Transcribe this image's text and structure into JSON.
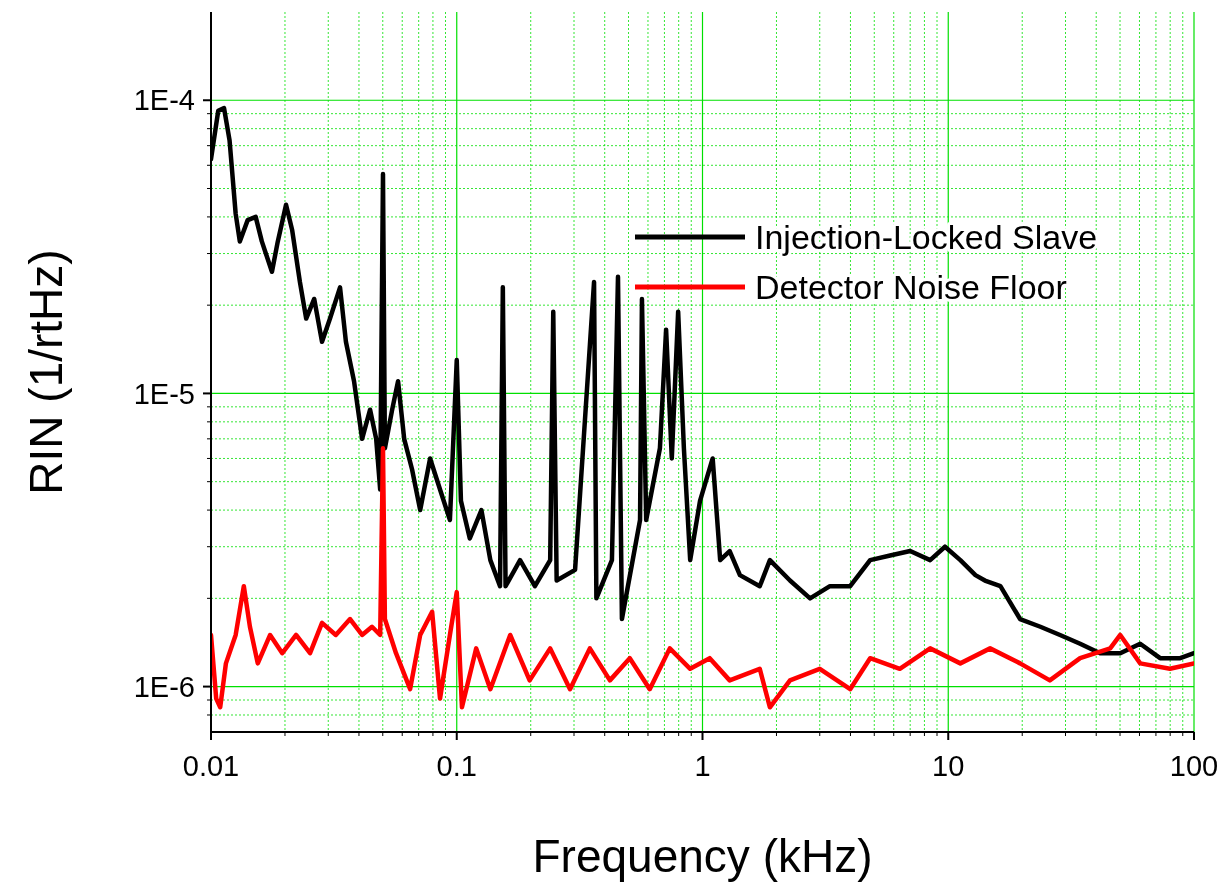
{
  "chart_data": {
    "type": "line",
    "xlabel": "Frequency (kHz)",
    "ylabel": "RIN (1/rtHz)",
    "log": "xy",
    "grid": true,
    "legend": "top right",
    "line_style": "solid",
    "marker": "none",
    "xlim": [
      0.01,
      100
    ],
    "xticks": [
      0.01,
      {
        "value": 0.02,
        "label": null
      },
      {
        "value": 0.03,
        "label": null
      },
      {
        "value": 0.04,
        "label": null
      },
      {
        "value": 0.05,
        "label": null
      },
      {
        "value": 0.06,
        "label": null
      },
      {
        "value": 0.07,
        "label": null
      },
      {
        "value": 0.08,
        "label": null
      },
      {
        "value": 0.09,
        "label": null
      },
      0.1,
      {
        "value": 0.2,
        "label": null
      },
      {
        "value": 0.3,
        "label": null
      },
      {
        "value": 0.4,
        "label": null
      },
      {
        "value": 0.5,
        "label": null
      },
      {
        "value": 0.6,
        "label": null
      },
      {
        "value": 0.7,
        "label": null
      },
      {
        "value": 0.8,
        "label": null
      },
      {
        "value": 0.9,
        "label": null
      },
      1,
      {
        "value": 2,
        "label": null
      },
      {
        "value": 3,
        "label": null
      },
      {
        "value": 4,
        "label": null
      },
      {
        "value": 5,
        "label": null
      },
      {
        "value": 6,
        "label": null
      },
      {
        "value": 7,
        "label": null
      },
      {
        "value": 8,
        "label": null
      },
      {
        "value": 9,
        "label": null
      },
      10,
      {
        "value": 20,
        "label": null
      },
      {
        "value": 30,
        "label": null
      },
      {
        "value": 40,
        "label": null
      },
      {
        "value": 50,
        "label": null
      },
      {
        "value": 60,
        "label": null
      },
      {
        "value": 70,
        "label": null
      },
      {
        "value": 80,
        "label": null
      },
      {
        "value": 90,
        "label": null
      },
      100
    ],
    "ylim": [
      7e-07,
      0.0002
    ],
    "yticks": [
      {
        "value": 8e-07,
        "label": null
      },
      {
        "value": 9e-07,
        "label": null
      },
      {
        "value": 1e-06,
        "label": "1E-6"
      },
      {
        "value": 2e-06,
        "label": null
      },
      {
        "value": 3e-06,
        "label": null
      },
      {
        "value": 4e-06,
        "label": null
      },
      {
        "value": 5e-06,
        "label": null
      },
      {
        "value": 6e-06,
        "label": null
      },
      {
        "value": 7e-06,
        "label": null
      },
      {
        "value": 8e-06,
        "label": null
      },
      {
        "value": 9e-06,
        "label": null
      },
      {
        "value": 1e-05,
        "label": "1E-5"
      },
      {
        "value": 2e-05,
        "label": null
      },
      {
        "value": 3e-05,
        "label": null
      },
      {
        "value": 4e-05,
        "label": null
      },
      {
        "value": 5e-05,
        "label": null
      },
      {
        "value": 6e-05,
        "label": null
      },
      {
        "value": 7e-05,
        "label": null
      },
      {
        "value": 8e-05,
        "label": null
      },
      {
        "value": 9e-05,
        "label": null
      },
      {
        "value": 0.0001,
        "label": "1E-4"
      }
    ],
    "series": [
      {
        "name": "Injection-Locked Slave",
        "color": "#000000",
        "x": [
          0.01,
          0.0107,
          0.0113,
          0.0119,
          0.0126,
          0.0131,
          0.0141,
          0.0152,
          0.0161,
          0.0177,
          0.0187,
          0.0202,
          0.0214,
          0.023,
          0.0244,
          0.0263,
          0.0283,
          0.0305,
          0.0335,
          0.0354,
          0.0382,
          0.0412,
          0.0444,
          0.047,
          0.0488,
          0.0501,
          0.051,
          0.0546,
          0.0577,
          0.0611,
          0.0658,
          0.071,
          0.0779,
          0.0855,
          0.0938,
          0.1,
          0.104,
          0.113,
          0.126,
          0.137,
          0.15,
          0.154,
          0.158,
          0.181,
          0.208,
          0.24,
          0.247,
          0.255,
          0.303,
          0.362,
          0.37,
          0.428,
          0.453,
          0.47,
          0.557,
          0.567,
          0.59,
          0.671,
          0.711,
          0.75,
          0.796,
          0.84,
          0.891,
          0.977,
          1.1,
          1.18,
          1.29,
          1.42,
          1.71,
          1.88,
          2.27,
          2.74,
          3.3,
          3.99,
          4.81,
          5.8,
          7.0,
          8.44,
          9.7,
          11.2,
          12.9,
          14.1,
          16.3,
          19.6,
          23.7,
          28.5,
          34.4,
          41.5,
          50.1,
          60.4,
          72.8,
          87.9,
          100
        ],
        "values": [
          6.3e-05,
          9.2e-05,
          9.4e-05,
          7.3e-05,
          4.1e-05,
          3.3e-05,
          3.9e-05,
          4e-05,
          3.3e-05,
          2.6e-05,
          3.3e-05,
          4.4e-05,
          3.6e-05,
          2.4e-05,
          1.8e-05,
          2.1e-05,
          1.5e-05,
          1.8e-05,
          2.3e-05,
          1.5e-05,
          1.1e-05,
          7e-06,
          8.8e-06,
          7e-06,
          4.7e-06,
          5.6e-05,
          6.5e-06,
          8.8e-06,
          1.1e-05,
          7e-06,
          5.5e-06,
          4e-06,
          6e-06,
          4.7e-06,
          3.7e-06,
          1.3e-05,
          4.3e-06,
          3.2e-06,
          4e-06,
          2.7e-06,
          2.2e-06,
          2.3e-05,
          2.2e-06,
          2.7e-06,
          2.2e-06,
          2.7e-06,
          1.9e-05,
          2.3e-06,
          2.5e-06,
          2.4e-05,
          2e-06,
          2.7e-06,
          2.5e-05,
          1.7e-06,
          3.7e-06,
          2.1e-05,
          3.7e-06,
          6.5e-06,
          1.65e-05,
          6e-06,
          1.9e-05,
          6.5e-06,
          2.7e-06,
          4.3e-06,
          6e-06,
          2.7e-06,
          2.9e-06,
          2.4e-06,
          2.2e-06,
          2.7e-06,
          2.3e-06,
          2e-06,
          2.2e-06,
          2.2e-06,
          2.7e-06,
          2.8e-06,
          2.9e-06,
          2.7e-06,
          3e-06,
          2.7e-06,
          2.4e-06,
          2.3e-06,
          2.2e-06,
          1.7e-06,
          1.6e-06,
          1.5e-06,
          1.4e-06,
          1.3e-06,
          1.3e-06,
          1.4e-06,
          1.25e-06,
          1.25e-06,
          1.3e-06
        ]
      },
      {
        "name": "Detector Noise Floor",
        "color": "#ff0000",
        "x": [
          0.01,
          0.0105,
          0.0109,
          0.0115,
          0.0126,
          0.0136,
          0.0144,
          0.0155,
          0.0174,
          0.0195,
          0.0222,
          0.0253,
          0.0283,
          0.0322,
          0.0368,
          0.0412,
          0.0452,
          0.0488,
          0.0501,
          0.051,
          0.0566,
          0.0646,
          0.071,
          0.0794,
          0.0855,
          0.0938,
          0.1,
          0.105,
          0.12,
          0.137,
          0.165,
          0.198,
          0.24,
          0.289,
          0.348,
          0.42,
          0.506,
          0.61,
          0.736,
          0.891,
          1.07,
          1.29,
          1.71,
          1.88,
          2.27,
          3.0,
          3.99,
          4.81,
          6.35,
          8.44,
          11.2,
          14.8,
          19.6,
          25.9,
          34.4,
          45.6,
          50.1,
          60.4,
          79.8,
          100
        ],
        "values": [
          1.5e-06,
          9.1e-07,
          8.5e-07,
          1.2e-06,
          1.5e-06,
          2.2e-06,
          1.6e-06,
          1.2e-06,
          1.5e-06,
          1.3e-06,
          1.5e-06,
          1.3e-06,
          1.65e-06,
          1.5e-06,
          1.7e-06,
          1.5e-06,
          1.6e-06,
          1.5e-06,
          6.5e-06,
          1.7e-06,
          1.3e-06,
          9.8e-07,
          1.5e-06,
          1.8e-06,
          9.1e-07,
          1.5e-06,
          2.1e-06,
          8.5e-07,
          1.35e-06,
          9.8e-07,
          1.5e-06,
          1.05e-06,
          1.35e-06,
          9.8e-07,
          1.35e-06,
          1.05e-06,
          1.25e-06,
          9.8e-07,
          1.35e-06,
          1.15e-06,
          1.25e-06,
          1.05e-06,
          1.15e-06,
          8.5e-07,
          1.05e-06,
          1.15e-06,
          9.8e-07,
          1.25e-06,
          1.15e-06,
          1.35e-06,
          1.2e-06,
          1.35e-06,
          1.2e-06,
          1.05e-06,
          1.25e-06,
          1.35e-06,
          1.5e-06,
          1.2e-06,
          1.15e-06,
          1.2e-06
        ]
      }
    ]
  }
}
